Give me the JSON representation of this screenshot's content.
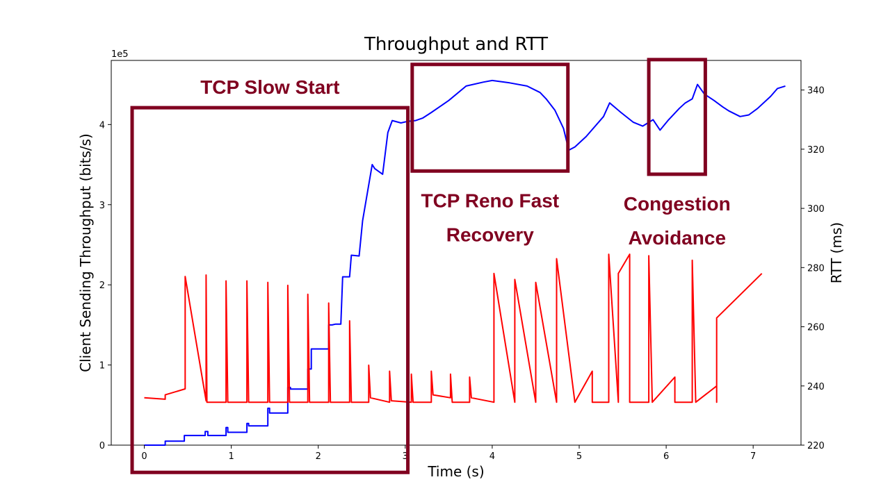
{
  "chart_data": {
    "type": "line",
    "title": "Throughput and RTT",
    "xlabel": "Time (s)",
    "ylabel": "Client Sending Throughput (bits/s)",
    "ylabel_right": "RTT (ms)",
    "y_offset_text": "1e5",
    "xlim": [
      -0.38,
      7.55
    ],
    "ylim": [
      0,
      4.8
    ],
    "ylim_right": [
      220,
      350
    ],
    "xticks": [
      "0",
      "1",
      "2",
      "3",
      "4",
      "5",
      "6",
      "7"
    ],
    "yticks": [
      "0",
      "1",
      "2",
      "3",
      "4"
    ],
    "yticks_right": [
      "220",
      "240",
      "260",
      "280",
      "300",
      "320",
      "340"
    ],
    "grid": false,
    "annotations": [
      {
        "lines": [
          "TCP Slow Start"
        ],
        "box": {
          "x0": -0.14,
          "x1": 3.03,
          "y0": -0.34,
          "y1": 4.21
        }
      },
      {
        "lines": [
          "TCP Reno Fast",
          "Recovery"
        ],
        "box": {
          "x0": 3.08,
          "x1": 4.87,
          "y0": 3.42,
          "y1": 4.75
        }
      },
      {
        "lines": [
          "Congestion",
          "Avoidance"
        ],
        "box": {
          "x0": 5.8,
          "x1": 6.45,
          "y0": 3.38,
          "y1": 4.81
        }
      }
    ],
    "series": [
      {
        "axis": "left",
        "color": "#0000ff",
        "points": [
          [
            0,
            0
          ],
          [
            0.24,
            0
          ],
          [
            0.24,
            0.05
          ],
          [
            0.46,
            0.05
          ],
          [
            0.46,
            0.12
          ],
          [
            0.7,
            0.12
          ],
          [
            0.7,
            0.17
          ],
          [
            0.73,
            0.17
          ],
          [
            0.73,
            0.12
          ],
          [
            0.94,
            0.12
          ],
          [
            0.94,
            0.22
          ],
          [
            0.96,
            0.22
          ],
          [
            0.96,
            0.16
          ],
          [
            1.18,
            0.16
          ],
          [
            1.18,
            0.27
          ],
          [
            1.2,
            0.27
          ],
          [
            1.2,
            0.24
          ],
          [
            1.42,
            0.24
          ],
          [
            1.42,
            0.46
          ],
          [
            1.44,
            0.46
          ],
          [
            1.44,
            0.4
          ],
          [
            1.65,
            0.4
          ],
          [
            1.65,
            0.72
          ],
          [
            1.68,
            0.72
          ],
          [
            1.68,
            0.7
          ],
          [
            1.88,
            0.7
          ],
          [
            1.88,
            0.95
          ],
          [
            1.92,
            0.95
          ],
          [
            1.92,
            1.2
          ],
          [
            2.12,
            1.2
          ],
          [
            2.12,
            1.5
          ],
          [
            2.16,
            1.5
          ],
          [
            2.2,
            1.51
          ],
          [
            2.26,
            1.51
          ],
          [
            2.28,
            2.1
          ],
          [
            2.36,
            2.1
          ],
          [
            2.38,
            2.37
          ],
          [
            2.47,
            2.36
          ],
          [
            2.51,
            2.8
          ],
          [
            2.62,
            3.5
          ],
          [
            2.65,
            3.45
          ],
          [
            2.74,
            3.38
          ],
          [
            2.8,
            3.9
          ],
          [
            2.85,
            4.05
          ],
          [
            2.95,
            4.02
          ],
          [
            3.03,
            4.04
          ],
          [
            3.12,
            4.05
          ],
          [
            3.2,
            4.08
          ],
          [
            3.3,
            4.15
          ],
          [
            3.5,
            4.3
          ],
          [
            3.7,
            4.48
          ],
          [
            3.9,
            4.53
          ],
          [
            4.0,
            4.55
          ],
          [
            4.2,
            4.52
          ],
          [
            4.4,
            4.48
          ],
          [
            4.55,
            4.4
          ],
          [
            4.62,
            4.32
          ],
          [
            4.72,
            4.18
          ],
          [
            4.82,
            3.95
          ],
          [
            4.88,
            3.68
          ],
          [
            4.95,
            3.72
          ],
          [
            5.08,
            3.85
          ],
          [
            5.28,
            4.1
          ],
          [
            5.35,
            4.27
          ],
          [
            5.48,
            4.15
          ],
          [
            5.62,
            4.03
          ],
          [
            5.73,
            3.98
          ],
          [
            5.85,
            4.06
          ],
          [
            5.93,
            3.93
          ],
          [
            6.02,
            4.05
          ],
          [
            6.15,
            4.2
          ],
          [
            6.22,
            4.27
          ],
          [
            6.3,
            4.32
          ],
          [
            6.36,
            4.5
          ],
          [
            6.44,
            4.38
          ],
          [
            6.55,
            4.3
          ],
          [
            6.65,
            4.22
          ],
          [
            6.72,
            4.17
          ],
          [
            6.85,
            4.1
          ],
          [
            6.95,
            4.12
          ],
          [
            7.05,
            4.2
          ],
          [
            7.2,
            4.35
          ],
          [
            7.28,
            4.45
          ],
          [
            7.37,
            4.48
          ]
        ]
      },
      {
        "axis": "right",
        "color": "#ff0000",
        "points": [
          [
            0,
            236
          ],
          [
            0.24,
            235.5
          ],
          [
            0.24,
            237
          ],
          [
            0.47,
            239
          ],
          [
            0.47,
            277
          ],
          [
            0.71,
            235
          ],
          [
            0.71,
            277.5
          ],
          [
            0.72,
            234.5
          ],
          [
            0.94,
            234.5
          ],
          [
            0.94,
            275.5
          ],
          [
            0.96,
            234.5
          ],
          [
            1.18,
            234.5
          ],
          [
            1.18,
            275.5
          ],
          [
            1.2,
            234.5
          ],
          [
            1.42,
            234.5
          ],
          [
            1.42,
            275
          ],
          [
            1.44,
            234.5
          ],
          [
            1.65,
            234.5
          ],
          [
            1.65,
            274
          ],
          [
            1.67,
            234.5
          ],
          [
            1.88,
            234.5
          ],
          [
            1.88,
            271
          ],
          [
            1.9,
            234.5
          ],
          [
            2.12,
            234.5
          ],
          [
            2.12,
            268
          ],
          [
            2.14,
            234.5
          ],
          [
            2.36,
            234.5
          ],
          [
            2.36,
            262
          ],
          [
            2.38,
            234.5
          ],
          [
            2.58,
            234.5
          ],
          [
            2.58,
            247
          ],
          [
            2.6,
            236
          ],
          [
            2.82,
            234.5
          ],
          [
            2.82,
            245
          ],
          [
            2.84,
            235
          ],
          [
            3.07,
            234.5
          ],
          [
            3.07,
            244
          ],
          [
            3.09,
            234.5
          ],
          [
            3.3,
            234.5
          ],
          [
            3.3,
            245
          ],
          [
            3.32,
            237
          ],
          [
            3.52,
            236
          ],
          [
            3.52,
            244
          ],
          [
            3.54,
            234.5
          ],
          [
            3.74,
            234.5
          ],
          [
            3.74,
            243
          ],
          [
            3.76,
            236
          ],
          [
            4.02,
            234.5
          ],
          [
            4.02,
            278
          ],
          [
            4.26,
            234.5
          ],
          [
            4.26,
            276
          ],
          [
            4.5,
            234.5
          ],
          [
            4.5,
            275
          ],
          [
            4.74,
            234.5
          ],
          [
            4.74,
            283
          ],
          [
            4.95,
            234.5
          ],
          [
            5.15,
            245
          ],
          [
            5.15,
            234.5
          ],
          [
            5.34,
            234.5
          ],
          [
            5.34,
            284.5
          ],
          [
            5.45,
            234.5
          ],
          [
            5.45,
            278
          ],
          [
            5.58,
            284.5
          ],
          [
            5.58,
            234.5
          ],
          [
            5.8,
            234.5
          ],
          [
            5.8,
            284
          ],
          [
            5.84,
            234.5
          ],
          [
            6.1,
            243
          ],
          [
            6.1,
            234.5
          ],
          [
            6.3,
            234.5
          ],
          [
            6.3,
            282.5
          ],
          [
            6.34,
            234.5
          ],
          [
            6.58,
            240
          ],
          [
            6.58,
            234.5
          ],
          [
            6.58,
            263
          ],
          [
            7.1,
            278
          ]
        ]
      }
    ]
  }
}
